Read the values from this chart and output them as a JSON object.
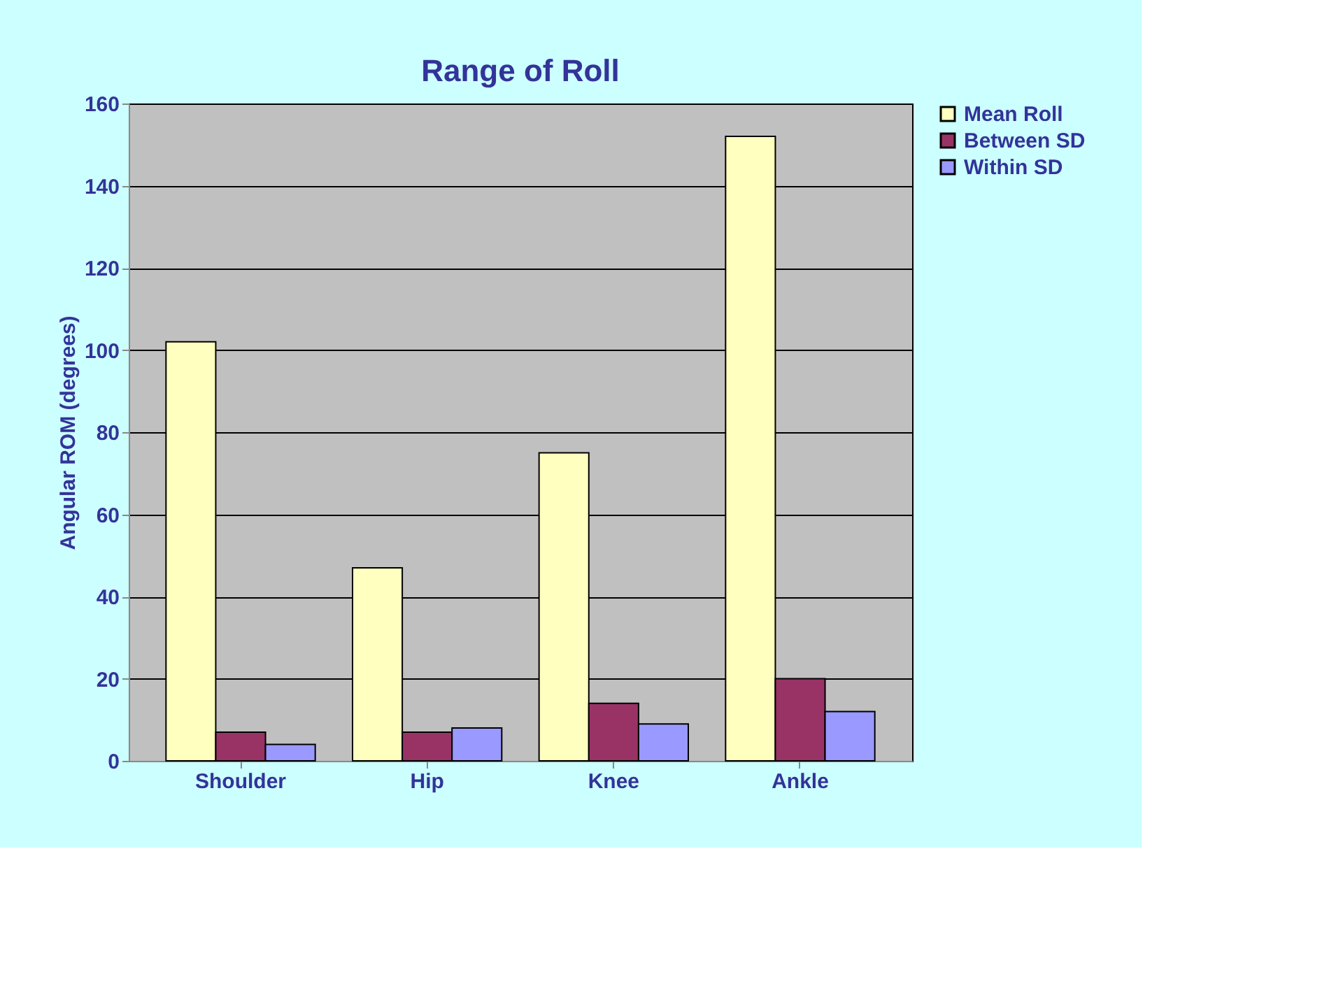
{
  "chart_data": {
    "type": "bar",
    "title": "Range of Roll",
    "ylabel": "Angular ROM (degrees)",
    "categories": [
      "Shoulder",
      "Hip",
      "Knee",
      "Ankle"
    ],
    "series": [
      {
        "name": "Mean Roll",
        "color": "#ffffc0",
        "values": [
          102,
          47,
          75,
          152
        ]
      },
      {
        "name": "Between SD",
        "color": "#993366",
        "values": [
          7,
          7,
          14,
          20
        ]
      },
      {
        "name": "Within SD",
        "color": "#9999ff",
        "values": [
          4,
          8,
          9,
          12
        ]
      }
    ],
    "ylim": [
      0,
      160
    ],
    "yticks": [
      0,
      20,
      40,
      60,
      80,
      100,
      120,
      140,
      160
    ],
    "grid": "y",
    "legend": "right"
  }
}
